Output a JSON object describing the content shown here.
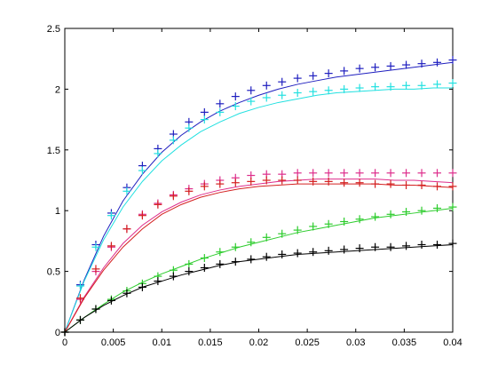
{
  "chart_data": {
    "type": "scatter",
    "title": "",
    "xlabel": "",
    "ylabel": "",
    "xlim": [
      0,
      0.04
    ],
    "ylim": [
      0,
      2.5
    ],
    "grid": false,
    "x_ticks": [
      0,
      0.005,
      0.01,
      0.015,
      0.02,
      0.025,
      0.03,
      0.035,
      0.04
    ],
    "x_tick_labels": [
      "0",
      "0.005",
      "0.01",
      "0.015",
      "0.02",
      "0.025",
      "0.03",
      "0.035",
      "0.04"
    ],
    "y_ticks": [
      0,
      0.5,
      1,
      1.5,
      2,
      2.5
    ],
    "y_tick_labels": [
      "0",
      "0.5",
      "1",
      "1.5",
      "2",
      "2.5"
    ],
    "marker_x": [
      0,
      0.0016,
      0.0032,
      0.0048,
      0.0064,
      0.008,
      0.0096,
      0.0112,
      0.0128,
      0.0144,
      0.016,
      0.0176,
      0.0192,
      0.0208,
      0.0224,
      0.024,
      0.0256,
      0.0272,
      0.0288,
      0.0304,
      0.032,
      0.0336,
      0.0352,
      0.0368,
      0.0384,
      0.04
    ],
    "series": [
      {
        "color": "#1f1fbf",
        "markers": [
          0,
          0.39,
          0.72,
          0.98,
          1.19,
          1.37,
          1.51,
          1.63,
          1.73,
          1.81,
          1.88,
          1.94,
          1.99,
          2.03,
          2.06,
          2.09,
          2.11,
          2.13,
          2.15,
          2.17,
          2.18,
          2.19,
          2.2,
          2.21,
          2.22,
          2.24
        ],
        "curve_x": [
          0,
          0.002,
          0.004,
          0.006,
          0.008,
          0.01,
          0.012,
          0.014,
          0.016,
          0.018,
          0.02,
          0.022,
          0.024,
          0.026,
          0.028,
          0.03,
          0.032,
          0.034,
          0.036,
          0.038,
          0.04
        ],
        "curve_y": [
          0,
          0.43,
          0.79,
          1.08,
          1.3,
          1.48,
          1.62,
          1.73,
          1.82,
          1.89,
          1.95,
          2.0,
          2.04,
          2.07,
          2.1,
          2.12,
          2.14,
          2.16,
          2.18,
          2.2,
          2.22
        ]
      },
      {
        "color": "#22e0e0",
        "markers": [
          0,
          0.38,
          0.7,
          0.96,
          1.16,
          1.33,
          1.47,
          1.58,
          1.68,
          1.75,
          1.81,
          1.86,
          1.9,
          1.93,
          1.95,
          1.97,
          1.98,
          1.99,
          2.0,
          2.01,
          2.02,
          2.02,
          2.03,
          2.03,
          2.04,
          2.05
        ],
        "curve_x": [
          0,
          0.002,
          0.004,
          0.006,
          0.008,
          0.01,
          0.012,
          0.014,
          0.016,
          0.018,
          0.02,
          0.022,
          0.024,
          0.026,
          0.028,
          0.03,
          0.032,
          0.034,
          0.036,
          0.038,
          0.04
        ],
        "curve_y": [
          0,
          0.42,
          0.76,
          1.03,
          1.24,
          1.41,
          1.54,
          1.65,
          1.73,
          1.8,
          1.85,
          1.89,
          1.92,
          1.95,
          1.97,
          1.98,
          1.99,
          2.0,
          2.0,
          2.01,
          2.01
        ]
      },
      {
        "color": "#dd2d8c",
        "markers": [
          0,
          0.27,
          0.5,
          0.7,
          0.85,
          0.97,
          1.06,
          1.13,
          1.18,
          1.22,
          1.25,
          1.27,
          1.29,
          1.3,
          1.3,
          1.31,
          1.31,
          1.31,
          1.31,
          1.31,
          1.31,
          1.31,
          1.31,
          1.31,
          1.31,
          1.31
        ],
        "curve_x": [
          0,
          0.002,
          0.004,
          0.006,
          0.008,
          0.01,
          0.012,
          0.014,
          0.016,
          0.018,
          0.02,
          0.022,
          0.024,
          0.026,
          0.028,
          0.03,
          0.032,
          0.034,
          0.036,
          0.038,
          0.04
        ],
        "curve_y": [
          0,
          0.29,
          0.53,
          0.73,
          0.88,
          0.99,
          1.07,
          1.13,
          1.17,
          1.2,
          1.22,
          1.24,
          1.25,
          1.26,
          1.26,
          1.26,
          1.26,
          1.25,
          1.25,
          1.24,
          1.23
        ]
      },
      {
        "color": "#d42020",
        "markers": [
          0,
          0.28,
          0.52,
          0.71,
          0.85,
          0.96,
          1.05,
          1.12,
          1.16,
          1.2,
          1.22,
          1.23,
          1.24,
          1.25,
          1.25,
          1.25,
          1.24,
          1.24,
          1.23,
          1.23,
          1.22,
          1.22,
          1.21,
          1.21,
          1.2,
          1.2
        ],
        "curve_x": [
          0,
          0.002,
          0.004,
          0.006,
          0.008,
          0.01,
          0.012,
          0.014,
          0.016,
          0.018,
          0.02,
          0.022,
          0.024,
          0.026,
          0.028,
          0.03,
          0.032,
          0.034,
          0.036,
          0.038,
          0.04
        ],
        "curve_y": [
          0,
          0.28,
          0.51,
          0.7,
          0.85,
          0.97,
          1.05,
          1.11,
          1.15,
          1.18,
          1.2,
          1.21,
          1.22,
          1.22,
          1.22,
          1.22,
          1.22,
          1.21,
          1.21,
          1.2,
          1.19
        ]
      },
      {
        "color": "#2ccc2c",
        "markers": [
          0,
          0.1,
          0.19,
          0.27,
          0.34,
          0.4,
          0.46,
          0.51,
          0.56,
          0.61,
          0.66,
          0.7,
          0.74,
          0.78,
          0.81,
          0.84,
          0.87,
          0.89,
          0.91,
          0.93,
          0.95,
          0.97,
          0.99,
          1.0,
          1.02,
          1.03
        ],
        "curve_x": [
          0,
          0.002,
          0.004,
          0.006,
          0.008,
          0.01,
          0.012,
          0.014,
          0.016,
          0.018,
          0.02,
          0.022,
          0.024,
          0.026,
          0.028,
          0.03,
          0.032,
          0.034,
          0.036,
          0.038,
          0.04
        ],
        "curve_y": [
          0,
          0.12,
          0.23,
          0.33,
          0.41,
          0.48,
          0.54,
          0.6,
          0.65,
          0.7,
          0.74,
          0.78,
          0.82,
          0.85,
          0.88,
          0.91,
          0.94,
          0.96,
          0.98,
          1.0,
          1.02
        ]
      },
      {
        "color": "#000000",
        "markers": [
          0,
          0.1,
          0.19,
          0.26,
          0.32,
          0.37,
          0.42,
          0.46,
          0.5,
          0.53,
          0.56,
          0.58,
          0.6,
          0.62,
          0.64,
          0.65,
          0.66,
          0.67,
          0.68,
          0.69,
          0.7,
          0.7,
          0.71,
          0.72,
          0.72,
          0.73
        ],
        "curve_x": [
          0,
          0.002,
          0.004,
          0.006,
          0.008,
          0.01,
          0.012,
          0.014,
          0.016,
          0.018,
          0.02,
          0.022,
          0.024,
          0.026,
          0.028,
          0.03,
          0.032,
          0.034,
          0.036,
          0.038,
          0.04
        ],
        "curve_y": [
          0,
          0.12,
          0.22,
          0.3,
          0.37,
          0.42,
          0.47,
          0.51,
          0.55,
          0.58,
          0.6,
          0.62,
          0.64,
          0.65,
          0.66,
          0.67,
          0.68,
          0.69,
          0.7,
          0.71,
          0.72
        ]
      }
    ]
  }
}
